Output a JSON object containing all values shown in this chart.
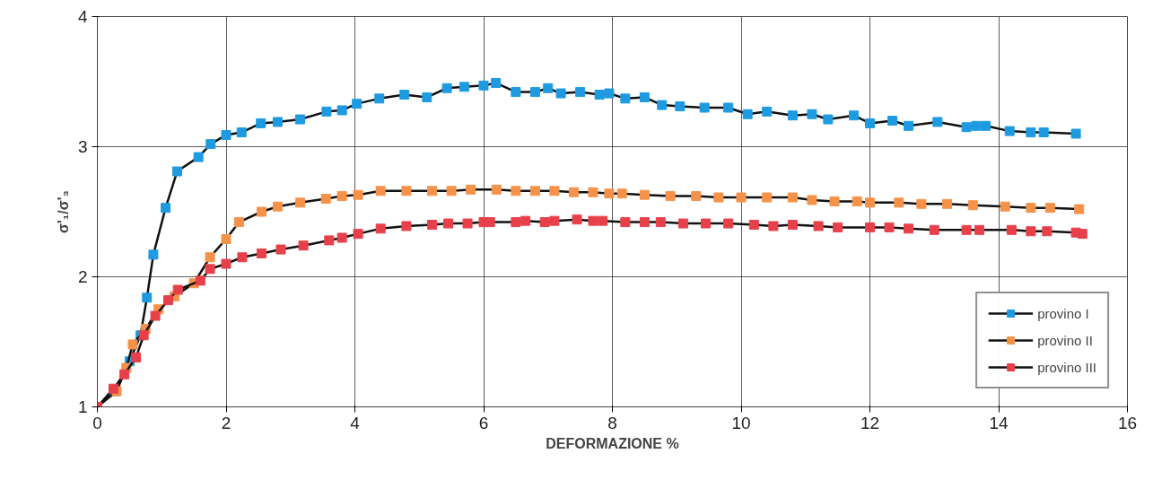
{
  "chart_data": {
    "type": "line",
    "xlabel": "DEFORMAZIONE %",
    "ylabel": "σ'₁/σ'₃",
    "xlim": [
      0,
      16
    ],
    "ylim": [
      1,
      4
    ],
    "xticks": [
      0,
      2,
      4,
      6,
      8,
      10,
      12,
      14,
      16
    ],
    "yticks": [
      1,
      2,
      3,
      4
    ],
    "grid": true,
    "legend": "bottom right",
    "marker": "square",
    "line_style": "solid",
    "series": [
      {
        "name": "provino I",
        "color": "#1e9be0",
        "x": [
          0,
          0.26,
          0.5,
          0.67,
          0.77,
          0.87,
          1.06,
          1.24,
          1.57,
          1.76,
          2.0,
          2.24,
          2.54,
          2.8,
          3.15,
          3.56,
          3.8,
          4.03,
          4.38,
          4.77,
          5.12,
          5.43,
          5.7,
          6.0,
          6.19,
          6.5,
          6.8,
          7.0,
          7.2,
          7.5,
          7.8,
          7.95,
          8.2,
          8.5,
          8.77,
          9.05,
          9.43,
          9.8,
          10.1,
          10.4,
          10.8,
          11.1,
          11.35,
          11.75,
          12.0,
          12.35,
          12.6,
          13.05,
          13.5,
          13.65,
          13.8,
          14.17,
          14.5,
          14.7,
          15.2
        ],
        "values": [
          1,
          1.12,
          1.35,
          1.55,
          1.84,
          2.17,
          2.53,
          2.81,
          2.92,
          3.02,
          3.09,
          3.11,
          3.18,
          3.19,
          3.21,
          3.27,
          3.28,
          3.33,
          3.37,
          3.4,
          3.38,
          3.45,
          3.46,
          3.47,
          3.49,
          3.42,
          3.42,
          3.45,
          3.41,
          3.42,
          3.4,
          3.41,
          3.37,
          3.38,
          3.32,
          3.31,
          3.3,
          3.3,
          3.25,
          3.27,
          3.24,
          3.25,
          3.21,
          3.24,
          3.18,
          3.2,
          3.16,
          3.19,
          3.15,
          3.16,
          3.16,
          3.12,
          3.11,
          3.11,
          3.1
        ]
      },
      {
        "name": "provino II",
        "color": "#f4924a",
        "x": [
          0,
          0.3,
          0.45,
          0.55,
          0.75,
          0.95,
          1.2,
          1.5,
          1.75,
          2.0,
          2.2,
          2.55,
          2.8,
          3.15,
          3.55,
          3.8,
          4.05,
          4.4,
          4.8,
          5.2,
          5.5,
          5.8,
          6.2,
          6.5,
          6.8,
          7.1,
          7.4,
          7.7,
          7.95,
          8.15,
          8.5,
          8.9,
          9.3,
          9.65,
          10.0,
          10.4,
          10.8,
          11.1,
          11.45,
          11.8,
          12.0,
          12.45,
          12.8,
          13.2,
          13.6,
          14.1,
          14.5,
          14.8,
          15.25
        ],
        "values": [
          1,
          1.12,
          1.3,
          1.48,
          1.6,
          1.75,
          1.85,
          1.95,
          2.15,
          2.29,
          2.42,
          2.5,
          2.54,
          2.57,
          2.6,
          2.62,
          2.63,
          2.66,
          2.66,
          2.66,
          2.66,
          2.67,
          2.67,
          2.66,
          2.66,
          2.66,
          2.65,
          2.65,
          2.64,
          2.64,
          2.63,
          2.62,
          2.62,
          2.61,
          2.61,
          2.61,
          2.61,
          2.59,
          2.58,
          2.58,
          2.57,
          2.57,
          2.56,
          2.56,
          2.55,
          2.54,
          2.53,
          2.53,
          2.52
        ]
      },
      {
        "name": "provino III",
        "color": "#e8404a",
        "x": [
          0,
          0.25,
          0.42,
          0.6,
          0.72,
          0.9,
          1.1,
          1.25,
          1.6,
          1.75,
          2.0,
          2.25,
          2.55,
          2.85,
          3.2,
          3.6,
          3.8,
          4.05,
          4.4,
          4.8,
          5.2,
          5.45,
          5.75,
          6.0,
          6.1,
          6.5,
          6.65,
          6.95,
          7.1,
          7.45,
          7.7,
          7.85,
          8.2,
          8.5,
          8.75,
          9.1,
          9.45,
          9.8,
          10.2,
          10.5,
          10.8,
          11.2,
          11.5,
          12.0,
          12.3,
          12.6,
          13.0,
          13.5,
          13.7,
          14.2,
          14.5,
          14.75,
          15.2,
          15.3
        ],
        "values": [
          1,
          1.14,
          1.25,
          1.38,
          1.55,
          1.7,
          1.82,
          1.9,
          1.97,
          2.06,
          2.1,
          2.15,
          2.18,
          2.21,
          2.24,
          2.28,
          2.3,
          2.33,
          2.37,
          2.39,
          2.4,
          2.41,
          2.41,
          2.42,
          2.42,
          2.42,
          2.43,
          2.42,
          2.43,
          2.44,
          2.43,
          2.43,
          2.42,
          2.42,
          2.42,
          2.41,
          2.41,
          2.41,
          2.4,
          2.39,
          2.4,
          2.39,
          2.38,
          2.38,
          2.38,
          2.37,
          2.36,
          2.36,
          2.36,
          2.36,
          2.35,
          2.35,
          2.34,
          2.33
        ]
      }
    ]
  }
}
